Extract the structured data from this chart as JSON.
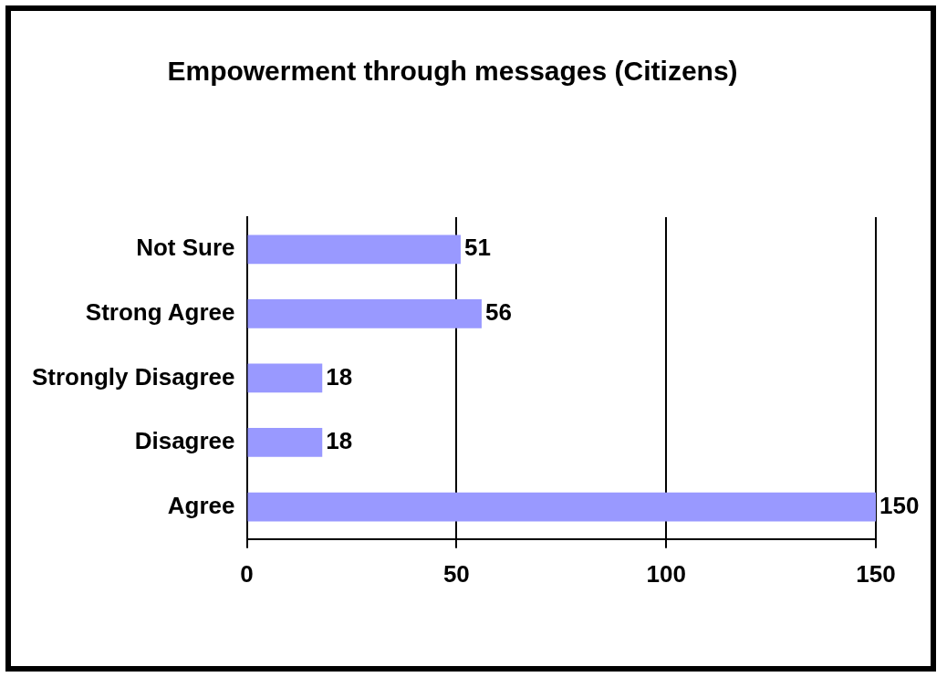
{
  "chart_data": {
    "type": "bar",
    "orientation": "horizontal",
    "title": "Empowerment through messages (Citizens)",
    "categories": [
      "Not Sure",
      "Strong Agree",
      "Strongly Disagree",
      "Disagree",
      "Agree"
    ],
    "values": [
      51,
      56,
      18,
      18,
      150
    ],
    "color": "#9999ff",
    "xlim": [
      0,
      150
    ],
    "xticks": [
      0,
      50,
      100,
      150
    ],
    "grid": "x",
    "data_labels": true,
    "legend": false
  }
}
